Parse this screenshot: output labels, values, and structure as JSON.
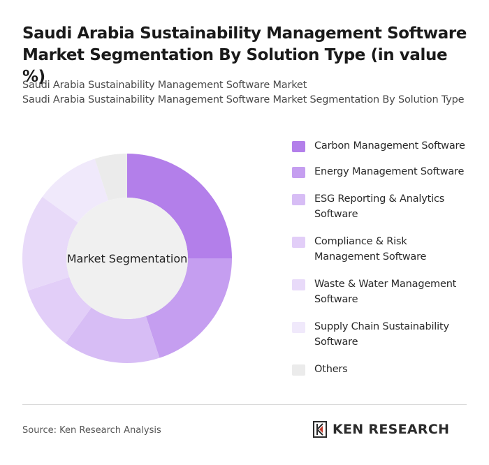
{
  "header": {
    "title_line1": "Saudi Arabia Sustainability Management Software",
    "title_line2": "Market Segmentation By Solution Type (in value %)",
    "subtitle_line1": "Saudi Arabia Sustainability Management Software Market",
    "subtitle_line2": "Saudi Arabia Sustainability Management Software Market Segmentation By Solution Type"
  },
  "chart_data": {
    "type": "pie",
    "center_label": "Market Segmentation",
    "legend_position": "right",
    "categories": [
      "Carbon Management Software",
      "Energy Management Software",
      "ESG Reporting & Analytics Software",
      "Compliance & Risk Management Software",
      "Waste & Water Management Software",
      "Supply Chain Sustainability Software",
      "Others"
    ],
    "values": [
      25,
      20,
      15,
      10,
      15,
      10,
      5
    ],
    "colors": [
      "#b37fea",
      "#c59ef0",
      "#d7bdf5",
      "#e2cef8",
      "#e8daf9",
      "#f0e9fb",
      "#ebebeb"
    ]
  },
  "footer": {
    "source": "Source: Ken Research Analysis",
    "brand": "KEN RESEARCH"
  }
}
